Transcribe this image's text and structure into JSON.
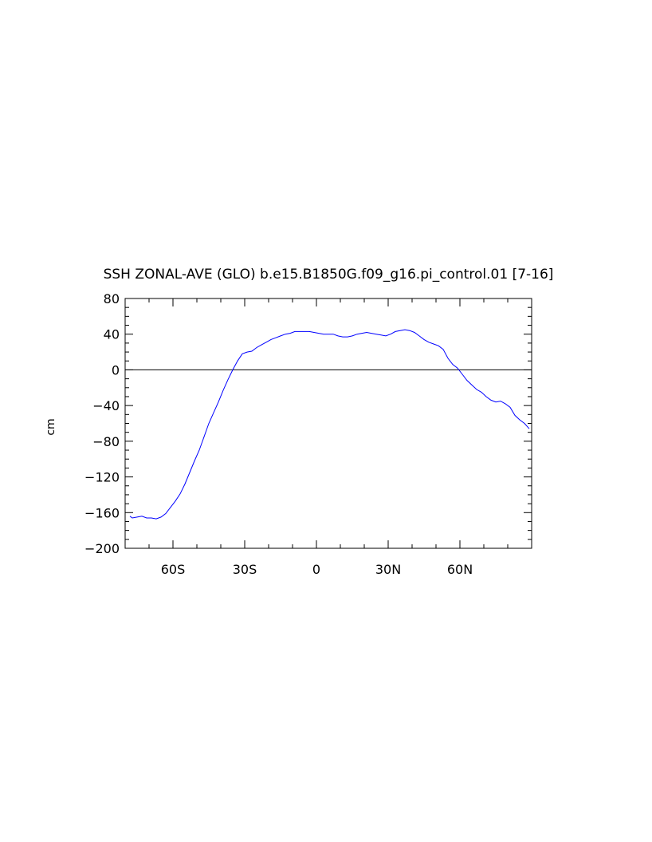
{
  "chart_data": {
    "type": "line",
    "title": "SSH ZONAL-AVE (GLO) b.e15.B1850G.f09_g16.pi_control.01 [7-16]",
    "xlabel": "",
    "ylabel": "cm",
    "xlim": [
      -80,
      90
    ],
    "ylim": [
      -200,
      80
    ],
    "x_ticks": [
      {
        "value": -60,
        "label": "60S"
      },
      {
        "value": -30,
        "label": "30S"
      },
      {
        "value": 0,
        "label": "0"
      },
      {
        "value": 30,
        "label": "30N"
      },
      {
        "value": 60,
        "label": "60N"
      }
    ],
    "y_ticks": [
      {
        "value": 80,
        "label": "80"
      },
      {
        "value": 40,
        "label": "40"
      },
      {
        "value": 0,
        "label": "0"
      },
      {
        "value": -40,
        "label": "−40"
      },
      {
        "value": -80,
        "label": "−80"
      },
      {
        "value": -120,
        "label": "−120"
      },
      {
        "value": -160,
        "label": "−160"
      },
      {
        "value": -200,
        "label": "−200"
      }
    ],
    "reference_line": {
      "y": 0,
      "color": "#000000"
    },
    "grid": false,
    "series": [
      {
        "color": "#0000ff",
        "points": [
          [
            -78,
            -164
          ],
          [
            -77,
            -166
          ],
          [
            -75,
            -165
          ],
          [
            -73,
            -164
          ],
          [
            -71,
            -166
          ],
          [
            -69,
            -166
          ],
          [
            -67,
            -167
          ],
          [
            -65,
            -165
          ],
          [
            -63,
            -161
          ],
          [
            -61,
            -154
          ],
          [
            -59,
            -147
          ],
          [
            -57,
            -139
          ],
          [
            -55,
            -128
          ],
          [
            -53,
            -115
          ],
          [
            -51,
            -102
          ],
          [
            -49,
            -90
          ],
          [
            -47,
            -75
          ],
          [
            -45,
            -60
          ],
          [
            -43,
            -48
          ],
          [
            -41,
            -36
          ],
          [
            -39,
            -23
          ],
          [
            -37,
            -11
          ],
          [
            -35,
            0
          ],
          [
            -33,
            10
          ],
          [
            -31,
            18
          ],
          [
            -29,
            20
          ],
          [
            -27,
            21
          ],
          [
            -25,
            25
          ],
          [
            -23,
            28
          ],
          [
            -21,
            31
          ],
          [
            -19,
            34
          ],
          [
            -17,
            36
          ],
          [
            -15,
            38
          ],
          [
            -13,
            40
          ],
          [
            -11,
            41
          ],
          [
            -9,
            43
          ],
          [
            -7,
            43
          ],
          [
            -5,
            43
          ],
          [
            -3,
            43
          ],
          [
            -1,
            42
          ],
          [
            1,
            41
          ],
          [
            3,
            40
          ],
          [
            5,
            40
          ],
          [
            7,
            40
          ],
          [
            9,
            38
          ],
          [
            11,
            37
          ],
          [
            13,
            37
          ],
          [
            15,
            38
          ],
          [
            17,
            40
          ],
          [
            19,
            41
          ],
          [
            21,
            42
          ],
          [
            23,
            41
          ],
          [
            25,
            40
          ],
          [
            27,
            39
          ],
          [
            29,
            38
          ],
          [
            31,
            40
          ],
          [
            33,
            43
          ],
          [
            35,
            44
          ],
          [
            37,
            45
          ],
          [
            39,
            44
          ],
          [
            41,
            42
          ],
          [
            43,
            38
          ],
          [
            45,
            34
          ],
          [
            47,
            31
          ],
          [
            49,
            29
          ],
          [
            51,
            27
          ],
          [
            53,
            23
          ],
          [
            55,
            13
          ],
          [
            57,
            6
          ],
          [
            59,
            2
          ],
          [
            61,
            -5
          ],
          [
            63,
            -12
          ],
          [
            65,
            -17
          ],
          [
            67,
            -22
          ],
          [
            69,
            -25
          ],
          [
            71,
            -30
          ],
          [
            73,
            -34
          ],
          [
            75,
            -36
          ],
          [
            77,
            -35
          ],
          [
            79,
            -38
          ],
          [
            81,
            -42
          ],
          [
            83,
            -51
          ],
          [
            85,
            -56
          ],
          [
            87,
            -60
          ],
          [
            89,
            -66
          ]
        ]
      }
    ]
  }
}
